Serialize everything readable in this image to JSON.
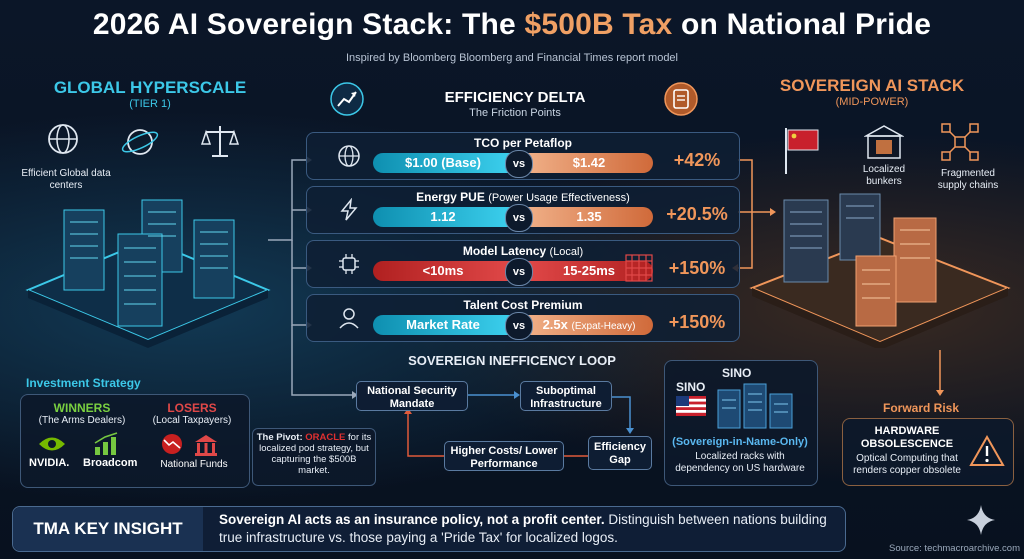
{
  "header": {
    "title_pre": "2026 AI Sovereign Stack: The ",
    "title_hl": "$500B Tax",
    "title_post": " on National Pride",
    "subtitle": "Inspired by Bloomberg Bloomberg and Financial Times report model"
  },
  "left": {
    "heading": "GLOBAL HYPERSCALE",
    "tier": "(TIER 1)",
    "icon_label": "Efficient Global data centers",
    "icons": [
      "globe-icon",
      "planet-icon",
      "scales-icon"
    ]
  },
  "right": {
    "heading": "SOVEREIGN AI STACK",
    "tier": "(MID-POWER)",
    "bunkers": "Localized bunkers",
    "supply": "Fragmented supply chains",
    "icons": [
      "flag-icon",
      "bunker-icon",
      "network-icon"
    ]
  },
  "delta": {
    "title": "EFFICIENCY DELTA",
    "subtitle": "The Friction Points",
    "vs": "vs",
    "metrics": [
      {
        "title": "TCO per Petaflop",
        "title_light": "",
        "left": "$1.00 (Base)",
        "right": "$1.42",
        "right_note": "",
        "pct": "+42%",
        "icon": "globe-icon"
      },
      {
        "title": "Energy PUE",
        "title_light": "(Power Usage Effectiveness)",
        "left": "1.12",
        "right": "1.35",
        "right_note": "",
        "pct": "+20.5%",
        "icon": "lightning-icon"
      },
      {
        "title": "Model Latency",
        "title_light": "(Local)",
        "left": "<10ms",
        "right": "15-25ms",
        "right_note": "",
        "pct": "+150%",
        "icon": "chip-icon"
      },
      {
        "title": "Talent Cost Premium",
        "title_light": "",
        "left": "Market Rate",
        "right": "2.5x",
        "right_note": "(Expat-Heavy)",
        "pct": "+150%",
        "icon": "person-icon"
      }
    ]
  },
  "loop": {
    "title": "SOVEREIGN INEFFICENCY LOOP",
    "mandate": "National Security Mandate",
    "infra": "Suboptimal Infrastructure",
    "gap": "Efficiency Gap",
    "costs": "Higher Costs/ Lower Performance"
  },
  "sino": {
    "label1": "SINO",
    "label2": "SINO",
    "desc_bold": "(Sovereign-in-Name-Only)",
    "desc": "Localized racks with dependency on US hardware"
  },
  "strategy": {
    "title": "Investment Strategy",
    "winners": "WINNERS",
    "winners_sub": "(The Arms Dealers)",
    "losers": "LOSERS",
    "losers_sub": "(Local Taxpayers)",
    "nvidia": "NVIDIA.",
    "broadcom": "Broadcom",
    "funds": "National Funds",
    "pivot_pre": "The Pivot: ",
    "pivot_brand": "ORACLE",
    "pivot_post": " for its localized pod strategy, but capturing the $500B market."
  },
  "risk": {
    "title": "Forward Risk",
    "head": "HARDWARE OBSOLESCENCE",
    "desc": "Optical Computing that renders copper obsolete"
  },
  "insight": {
    "label": "TMA KEY INSIGHT",
    "bold": "Sovereign AI acts as an insurance policy, not a profit center.",
    "rest": " Distinguish between nations building true infrastructure vs. those paying a 'Pride Tax' for localized logos."
  },
  "source": "Source: techmacroarchive.com",
  "colors": {
    "cyan": "#3cc8e8",
    "orange": "#f0965a",
    "red": "#e04848",
    "navy": "#0a1424"
  }
}
